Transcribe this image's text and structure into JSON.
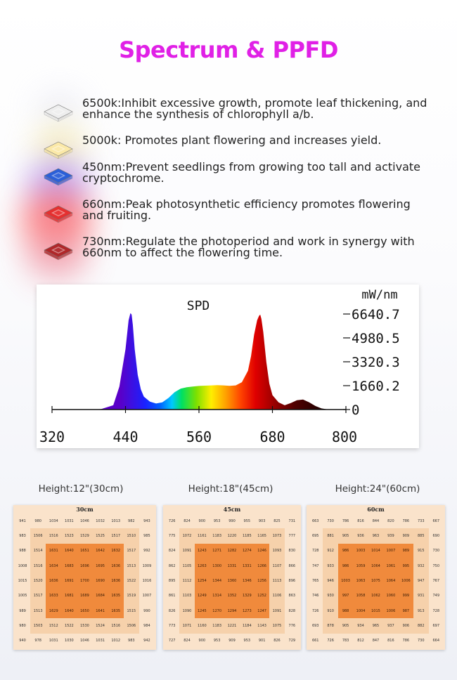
{
  "page": {
    "title": "Spectrum & PPFD"
  },
  "features": [
    {
      "icon": "white-led-chip-icon",
      "color": "#eeeeee",
      "glow": "#d8d8e6",
      "text": "6500k:Inhibit excessive growth, promote leaf thickening, and enhance the synthesis of chlorophyll a/b."
    },
    {
      "icon": "warm-white-led-chip-icon",
      "color": "#fbe9a8",
      "glow": "#f6e7a0",
      "text": "5000k: Promotes plant flowering and increases yield."
    },
    {
      "icon": "blue-led-chip-icon",
      "color": "#2b5fd8",
      "glow": "#7a6cff",
      "text": "450nm:Prevent seedlings from growing too tall and activate cryptochrome."
    },
    {
      "icon": "red-led-chip-icon",
      "color": "#e53030",
      "glow": "#ff4c4c",
      "text": "660nm:Peak photosynthetic efficiency promotes flowering and fruiting."
    },
    {
      "icon": "deep-red-led-chip-icon",
      "color": "#b0282a",
      "glow": "#e25c66",
      "text": "730nm:Regulate the photoperiod and work in synergy with 660nm to affect the flowering time."
    }
  ],
  "chart_data": [
    {
      "type": "area",
      "title": "SPD",
      "ylabel": "mW/nm",
      "xlabel": "",
      "x_ticks": [
        "320",
        "440",
        "560",
        "680",
        "800"
      ],
      "y_ticks": [
        "6640.7",
        "4980.5",
        "3320.3",
        "1660.2",
        "0"
      ],
      "xlim": [
        320,
        800
      ],
      "ylim": [
        0,
        6640.7
      ],
      "x": [
        380,
        400,
        420,
        430,
        440,
        445,
        448,
        450,
        452,
        455,
        460,
        465,
        470,
        480,
        490,
        500,
        510,
        520,
        530,
        540,
        550,
        560,
        570,
        580,
        590,
        600,
        610,
        620,
        630,
        640,
        645,
        650,
        655,
        658,
        660,
        662,
        665,
        670,
        675,
        680,
        690,
        700,
        710,
        720,
        730,
        740,
        750,
        760,
        770,
        780
      ],
      "y": [
        0,
        30,
        300,
        1600,
        4200,
        6200,
        6700,
        6600,
        5900,
        4200,
        2400,
        1400,
        900,
        550,
        420,
        500,
        800,
        1200,
        1450,
        1550,
        1600,
        1640,
        1660,
        1680,
        1700,
        1680,
        1650,
        1680,
        1900,
        2700,
        3700,
        5200,
        6200,
        6500,
        6600,
        6300,
        5400,
        3300,
        1800,
        1000,
        500,
        300,
        450,
        650,
        700,
        500,
        250,
        80,
        10,
        0
      ],
      "grid": false,
      "legend": "none"
    },
    {
      "type": "heatmap",
      "label": "Height:12\"(30cm)",
      "title": "30cm",
      "values": [
        [
          941,
          980,
          1034,
          1031,
          1046,
          1032,
          1013,
          982,
          943
        ],
        [
          983,
          1506,
          1516,
          1523,
          1529,
          1525,
          1517,
          1510,
          985
        ],
        [
          988,
          1514,
          1631,
          1640,
          1651,
          1642,
          1632,
          1517,
          992
        ],
        [
          1008,
          1516,
          1634,
          1683,
          1696,
          1695,
          1636,
          1513,
          1009
        ],
        [
          1015,
          1520,
          1636,
          1691,
          1700,
          1690,
          1636,
          1522,
          1016
        ],
        [
          1005,
          1517,
          1633,
          1681,
          1689,
          1684,
          1635,
          1519,
          1007
        ],
        [
          989,
          1513,
          1629,
          1640,
          1650,
          1641,
          1635,
          1515,
          990
        ],
        [
          980,
          1503,
          1512,
          1522,
          1530,
          1524,
          1516,
          1506,
          984
        ],
        [
          940,
          978,
          1031,
          1030,
          1046,
          1031,
          1012,
          983,
          942
        ]
      ]
    },
    {
      "type": "heatmap",
      "label": "Height:18\"(45cm)",
      "title": "45cm",
      "values": [
        [
          726,
          824,
          900,
          953,
          990,
          955,
          903,
          825,
          731
        ],
        [
          775,
          1072,
          1161,
          1183,
          1220,
          1185,
          1165,
          1073,
          777
        ],
        [
          824,
          1091,
          1243,
          1271,
          1282,
          1274,
          1246,
          1093,
          830
        ],
        [
          862,
          1105,
          1263,
          1300,
          1331,
          1331,
          1266,
          1107,
          866
        ],
        [
          895,
          1112,
          1254,
          1344,
          1360,
          1346,
          1256,
          1113,
          896
        ],
        [
          861,
          1103,
          1249,
          1314,
          1352,
          1329,
          1252,
          1106,
          863
        ],
        [
          826,
          1090,
          1245,
          1270,
          1294,
          1273,
          1247,
          1091,
          828
        ],
        [
          773,
          1071,
          1160,
          1183,
          1221,
          1184,
          1143,
          1075,
          776
        ],
        [
          727,
          824,
          900,
          953,
          909,
          953,
          901,
          826,
          729
        ]
      ]
    },
    {
      "type": "heatmap",
      "label": "Height:24\"(60cm)",
      "title": "60cm",
      "values": [
        [
          663,
          730,
          786,
          816,
          844,
          820,
          786,
          733,
          667
        ],
        [
          695,
          881,
          905,
          936,
          963,
          939,
          909,
          885,
          690
        ],
        [
          728,
          912,
          986,
          1003,
          1014,
          1007,
          989,
          915,
          730
        ],
        [
          747,
          933,
          986,
          1059,
          1064,
          1061,
          995,
          932,
          750
        ],
        [
          765,
          946,
          1003,
          1063,
          1075,
          1064,
          1006,
          947,
          767
        ],
        [
          746,
          930,
          997,
          1058,
          1062,
          1060,
          999,
          931,
          749
        ],
        [
          726,
          910,
          988,
          1004,
          1015,
          1006,
          987,
          913,
          728
        ],
        [
          693,
          878,
          905,
          934,
          965,
          937,
          906,
          882,
          697
        ],
        [
          661,
          726,
          783,
          812,
          847,
          816,
          786,
          730,
          664
        ]
      ]
    }
  ]
}
